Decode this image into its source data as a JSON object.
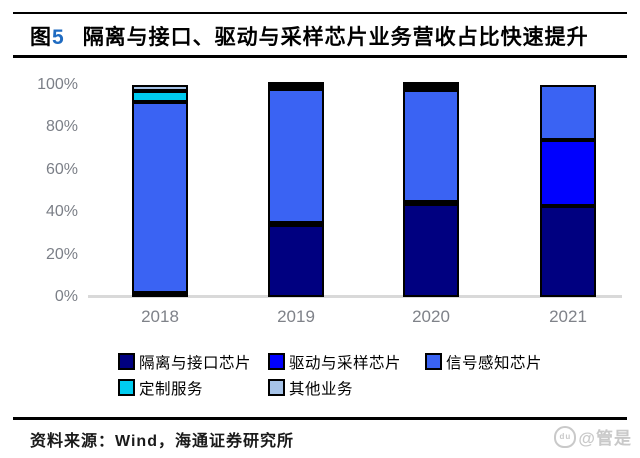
{
  "header": {
    "fig_prefix": "图",
    "fig_num": "5",
    "title": "隔离与接口、驱动与采样芯片业务营收占比快速提升"
  },
  "footer": {
    "source_label": "资料来源：",
    "source_wind": "Wind",
    "source_sep": "，",
    "source_org": "海通证券研究所",
    "watermark_text": "@管是",
    "watermark_icon": "baidu-paw",
    "watermark_icon_text": "du"
  },
  "colors": {
    "fig_num_blue": "#1F6BC1",
    "axis_gray": "#D9D9D9",
    "tick_gray": "#7b7f87",
    "bar_border": "#000000"
  },
  "chart_data": {
    "type": "bar",
    "stacked": true,
    "title": "隔离与接口、驱动与采样芯片业务营收占比快速提升",
    "categories": [
      "2018",
      "2019",
      "2020",
      "2021"
    ],
    "series": [
      {
        "name": "隔离与接口芯片",
        "color": "#000080",
        "values": [
          2,
          34,
          44,
          43
        ]
      },
      {
        "name": "驱动与采样芯片",
        "color": "#0000FE",
        "values": [
          0,
          1,
          1,
          31
        ]
      },
      {
        "name": "信号感知芯片",
        "color": "#3A63F3",
        "values": [
          90,
          63,
          52.5,
          26
        ]
      },
      {
        "name": "定制服务",
        "color": "#00CCF0",
        "values": [
          5,
          1.5,
          2,
          0
        ]
      },
      {
        "name": "其他业务",
        "color": "#A6C3E8",
        "values": [
          3,
          0.5,
          0.5,
          0
        ]
      }
    ],
    "y_ticks": [
      "0%",
      "20%",
      "40%",
      "60%",
      "80%",
      "100%"
    ],
    "ylim": [
      0,
      100
    ],
    "grid": false,
    "legend_position": "bottom",
    "xlabel": "",
    "ylabel": ""
  }
}
